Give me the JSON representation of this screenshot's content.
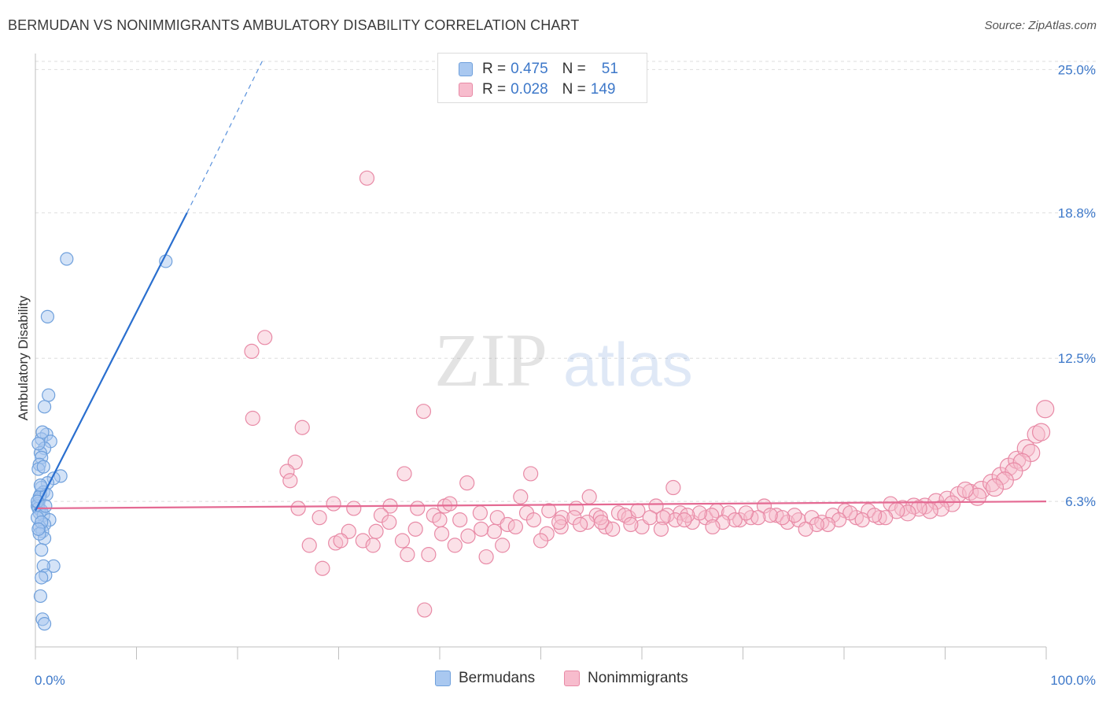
{
  "header": {
    "title": "BERMUDAN VS NONIMMIGRANTS AMBULATORY DISABILITY CORRELATION CHART",
    "source": "Source: ZipAtlas.com"
  },
  "legend": {
    "rows": [
      {
        "r_label": "R =",
        "r_value": "0.475",
        "n_label": "N =",
        "n_value": "51",
        "color": "#a9c8f0",
        "border": "#6fa0dc"
      },
      {
        "r_label": "R =",
        "r_value": "0.028",
        "n_label": "N =",
        "n_value": "149",
        "color": "#f7bccd",
        "border": "#e88aa6"
      }
    ],
    "bottom": [
      {
        "label": "Bermudans",
        "color": "#a9c8f0",
        "border": "#6fa0dc"
      },
      {
        "label": "Nonimmigrants",
        "color": "#f7bccd",
        "border": "#e88aa6"
      }
    ]
  },
  "watermark": {
    "zip": "ZIP",
    "atlas": "atlas"
  },
  "chart_data": {
    "type": "scatter",
    "title": "BERMUDAN VS NONIMMIGRANTS AMBULATORY DISABILITY CORRELATION CHART",
    "xlabel": "",
    "ylabel": "Ambulatory Disability",
    "xlim": [
      0,
      100
    ],
    "ylim": [
      0,
      25.9
    ],
    "x_tick_labels": [
      "0.0%",
      "100.0%"
    ],
    "y_tick_labels": [
      "6.3%",
      "12.5%",
      "18.8%",
      "25.0%"
    ],
    "y_ticks": [
      6.3,
      12.5,
      18.8,
      25.0
    ],
    "grid": "horizontal dashed",
    "legend_placement": "top-center",
    "series": [
      {
        "name": "Bermudans",
        "color": "#6fa0dc",
        "fill": "#a9c8f0",
        "trend": {
          "x": [
            0,
            15
          ],
          "y": [
            5.9,
            18.8
          ],
          "dashed_extension_to": [
            22.6,
            25.5
          ]
        },
        "points": [
          [
            3.1,
            16.8
          ],
          [
            12.9,
            16.7
          ],
          [
            1.2,
            14.3
          ],
          [
            1.3,
            10.9
          ],
          [
            0.9,
            10.4
          ],
          [
            1.1,
            9.2
          ],
          [
            0.6,
            9.0
          ],
          [
            1.5,
            8.9
          ],
          [
            0.9,
            8.6
          ],
          [
            0.5,
            8.4
          ],
          [
            0.6,
            8.2
          ],
          [
            0.4,
            7.9
          ],
          [
            0.3,
            7.7
          ],
          [
            2.5,
            7.4
          ],
          [
            1.8,
            7.3
          ],
          [
            1.2,
            7.1
          ],
          [
            0.6,
            6.9
          ],
          [
            0.8,
            6.7
          ],
          [
            0.5,
            6.6
          ],
          [
            0.4,
            6.4
          ],
          [
            0.3,
            6.2
          ],
          [
            0.2,
            6.1
          ],
          [
            0.3,
            6.0
          ],
          [
            0.6,
            5.9
          ],
          [
            0.4,
            5.8
          ],
          [
            0.8,
            5.7
          ],
          [
            1.4,
            5.5
          ],
          [
            0.9,
            5.3
          ],
          [
            0.4,
            5.2
          ],
          [
            0.7,
            5.0
          ],
          [
            0.9,
            4.7
          ],
          [
            0.6,
            4.2
          ],
          [
            1.8,
            3.5
          ],
          [
            0.8,
            3.5
          ],
          [
            1.0,
            3.1
          ],
          [
            0.6,
            3.0
          ],
          [
            0.5,
            2.2
          ],
          [
            0.7,
            1.2
          ],
          [
            0.9,
            1.0
          ],
          [
            0.4,
            6.5
          ],
          [
            0.2,
            5.6
          ],
          [
            1.1,
            6.6
          ],
          [
            0.5,
            7.0
          ],
          [
            0.3,
            8.8
          ],
          [
            0.7,
            9.3
          ],
          [
            0.2,
            6.3
          ],
          [
            0.6,
            5.4
          ],
          [
            1.0,
            6.1
          ],
          [
            0.4,
            4.9
          ],
          [
            0.8,
            7.8
          ],
          [
            0.3,
            5.1
          ]
        ]
      },
      {
        "name": "Nonimmigrants",
        "color": "#e88aa6",
        "fill": "#f7bccd",
        "trend": {
          "x": [
            0,
            100
          ],
          "y": [
            6.0,
            6.3
          ]
        },
        "points": [
          [
            32.8,
            20.3
          ],
          [
            22.7,
            13.4
          ],
          [
            21.4,
            12.8
          ],
          [
            38.4,
            10.2
          ],
          [
            21.5,
            9.9
          ],
          [
            26.4,
            9.5
          ],
          [
            25.7,
            8.0
          ],
          [
            24.9,
            7.6
          ],
          [
            25.2,
            7.2
          ],
          [
            36.5,
            7.5
          ],
          [
            42.7,
            7.1
          ],
          [
            49.0,
            7.5
          ],
          [
            63.1,
            6.9
          ],
          [
            54.8,
            6.5
          ],
          [
            40.5,
            6.1
          ],
          [
            41.0,
            6.2
          ],
          [
            35.1,
            6.1
          ],
          [
            29.5,
            6.2
          ],
          [
            26.0,
            6.0
          ],
          [
            31.5,
            6.0
          ],
          [
            28.1,
            5.6
          ],
          [
            34.2,
            5.7
          ],
          [
            37.8,
            6.0
          ],
          [
            39.4,
            5.7
          ],
          [
            42.0,
            5.5
          ],
          [
            44.0,
            5.8
          ],
          [
            45.7,
            5.6
          ],
          [
            48.6,
            5.8
          ],
          [
            50.8,
            5.9
          ],
          [
            52.1,
            5.6
          ],
          [
            53.5,
            6.0
          ],
          [
            55.5,
            5.7
          ],
          [
            56.4,
            5.2
          ],
          [
            57.7,
            5.8
          ],
          [
            58.7,
            5.6
          ],
          [
            60.0,
            5.2
          ],
          [
            61.4,
            6.1
          ],
          [
            62.5,
            5.7
          ],
          [
            63.8,
            5.8
          ],
          [
            65.0,
            5.4
          ],
          [
            66.3,
            5.6
          ],
          [
            67.4,
            5.9
          ],
          [
            68.6,
            5.8
          ],
          [
            69.7,
            5.5
          ],
          [
            70.8,
            5.6
          ],
          [
            72.1,
            6.1
          ],
          [
            73.3,
            5.7
          ],
          [
            74.4,
            5.4
          ],
          [
            75.5,
            5.5
          ],
          [
            76.8,
            5.6
          ],
          [
            77.8,
            5.4
          ],
          [
            78.9,
            5.7
          ],
          [
            80.1,
            5.9
          ],
          [
            81.2,
            5.6
          ],
          [
            82.4,
            5.9
          ],
          [
            83.5,
            5.6
          ],
          [
            84.6,
            6.2
          ],
          [
            85.8,
            6.0
          ],
          [
            86.9,
            6.1
          ],
          [
            88.0,
            6.1
          ],
          [
            89.1,
            6.3
          ],
          [
            90.2,
            6.4
          ],
          [
            91.3,
            6.6
          ],
          [
            92.5,
            6.7
          ],
          [
            93.6,
            6.8
          ],
          [
            94.6,
            7.1
          ],
          [
            95.5,
            7.4
          ],
          [
            96.3,
            7.8
          ],
          [
            97.1,
            8.1
          ],
          [
            98.0,
            8.6
          ],
          [
            99.0,
            9.2
          ],
          [
            99.9,
            10.3
          ],
          [
            99.5,
            9.3
          ],
          [
            98.5,
            8.4
          ],
          [
            97.6,
            8.0
          ],
          [
            96.8,
            7.6
          ],
          [
            95.9,
            7.2
          ],
          [
            94.9,
            6.9
          ],
          [
            93.2,
            6.5
          ],
          [
            92.0,
            6.8
          ],
          [
            90.7,
            6.2
          ],
          [
            89.6,
            6.0
          ],
          [
            88.5,
            5.9
          ],
          [
            87.4,
            6.0
          ],
          [
            86.3,
            5.8
          ],
          [
            85.2,
            5.9
          ],
          [
            84.1,
            5.6
          ],
          [
            83.0,
            5.7
          ],
          [
            81.8,
            5.5
          ],
          [
            80.6,
            5.8
          ],
          [
            79.5,
            5.5
          ],
          [
            78.4,
            5.3
          ],
          [
            77.3,
            5.3
          ],
          [
            76.2,
            5.1
          ],
          [
            75.1,
            5.7
          ],
          [
            73.9,
            5.6
          ],
          [
            72.7,
            5.7
          ],
          [
            71.5,
            5.6
          ],
          [
            70.3,
            5.8
          ],
          [
            69.2,
            5.5
          ],
          [
            68.0,
            5.4
          ],
          [
            66.9,
            5.7
          ],
          [
            65.7,
            5.8
          ],
          [
            64.5,
            5.7
          ],
          [
            63.3,
            5.5
          ],
          [
            62.1,
            5.6
          ],
          [
            60.8,
            5.6
          ],
          [
            59.6,
            5.9
          ],
          [
            58.3,
            5.7
          ],
          [
            57.1,
            5.1
          ],
          [
            55.9,
            5.6
          ],
          [
            54.6,
            5.4
          ],
          [
            53.3,
            5.6
          ],
          [
            52.0,
            5.2
          ],
          [
            50.6,
            4.9
          ],
          [
            49.3,
            5.5
          ],
          [
            48.0,
            6.5
          ],
          [
            46.7,
            5.3
          ],
          [
            45.4,
            5.0
          ],
          [
            44.1,
            5.1
          ],
          [
            42.8,
            4.8
          ],
          [
            41.5,
            4.4
          ],
          [
            40.2,
            4.9
          ],
          [
            38.9,
            4.0
          ],
          [
            37.6,
            5.1
          ],
          [
            36.3,
            4.6
          ],
          [
            35.0,
            5.4
          ],
          [
            33.7,
            5.0
          ],
          [
            32.4,
            4.6
          ],
          [
            31.0,
            5.0
          ],
          [
            29.7,
            4.5
          ],
          [
            28.4,
            3.4
          ],
          [
            27.1,
            4.4
          ],
          [
            30.2,
            4.6
          ],
          [
            33.4,
            4.4
          ],
          [
            36.8,
            4.0
          ],
          [
            38.5,
            1.6
          ],
          [
            40.0,
            5.5
          ],
          [
            44.6,
            3.9
          ],
          [
            46.2,
            4.4
          ],
          [
            47.5,
            5.2
          ],
          [
            50.0,
            4.6
          ],
          [
            51.8,
            5.4
          ],
          [
            53.9,
            5.3
          ],
          [
            56.0,
            5.4
          ],
          [
            58.9,
            5.3
          ],
          [
            61.9,
            5.1
          ],
          [
            64.2,
            5.5
          ],
          [
            67.0,
            5.2
          ]
        ]
      }
    ]
  }
}
